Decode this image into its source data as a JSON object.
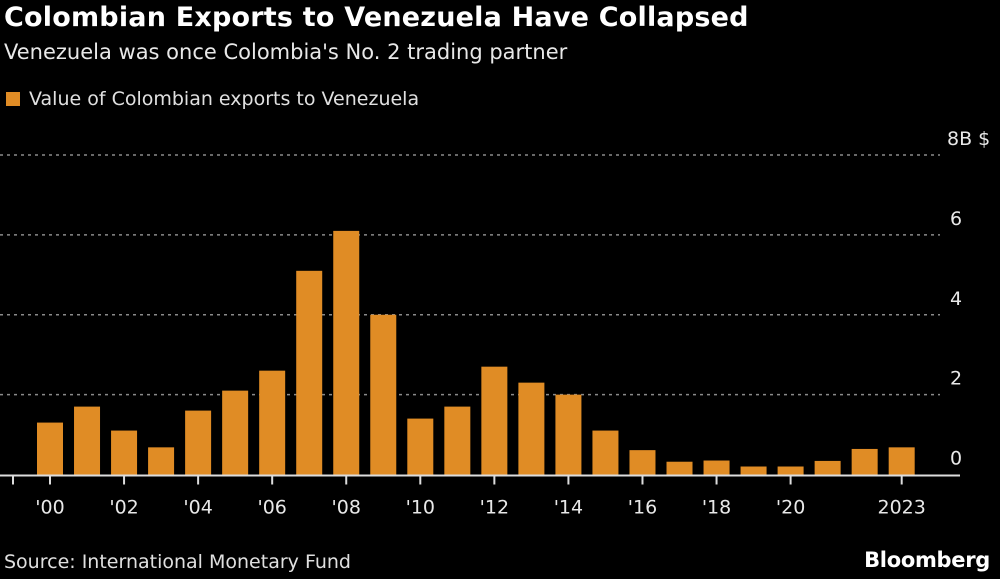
{
  "title": "Colombian Exports to Venezuela Have Collapsed",
  "subtitle": "Venezuela was once Colombia's No. 2 trading partner",
  "source": "Source: International Monetary Fund",
  "brand": "Bloomberg",
  "colors": {
    "bar": "#e08c25",
    "background": "#000000",
    "grid": "#8a8a8a"
  },
  "chart_data": {
    "type": "bar",
    "categories": [
      "2000",
      "2001",
      "2002",
      "2003",
      "2004",
      "2005",
      "2006",
      "2007",
      "2008",
      "2009",
      "2010",
      "2011",
      "2012",
      "2013",
      "2014",
      "2015",
      "2016",
      "2017",
      "2018",
      "2019",
      "2020",
      "2021",
      "2022",
      "2023"
    ],
    "series": [
      {
        "name": "Value of Colombian exports to Venezuela",
        "values": [
          1.3,
          1.7,
          1.1,
          0.68,
          1.6,
          2.1,
          2.6,
          5.1,
          6.1,
          4.0,
          1.4,
          1.7,
          2.7,
          2.3,
          2.0,
          1.1,
          0.61,
          0.32,
          0.35,
          0.2,
          0.2,
          0.34,
          0.64,
          0.68
        ]
      }
    ],
    "x_tick_labels": [
      {
        "category": "2000",
        "label": "'00"
      },
      {
        "category": "2002",
        "label": "'02"
      },
      {
        "category": "2004",
        "label": "'04"
      },
      {
        "category": "2006",
        "label": "'06"
      },
      {
        "category": "2008",
        "label": "'08"
      },
      {
        "category": "2010",
        "label": "'10"
      },
      {
        "category": "2012",
        "label": "'12"
      },
      {
        "category": "2014",
        "label": "'14"
      },
      {
        "category": "2016",
        "label": "'16"
      },
      {
        "category": "2018",
        "label": "'18"
      },
      {
        "category": "2020",
        "label": "'20"
      },
      {
        "category": "2023",
        "label": "2023"
      }
    ],
    "y_ticks": [
      {
        "value": 0,
        "label": "0"
      },
      {
        "value": 2,
        "label": "2"
      },
      {
        "value": 4,
        "label": "4"
      },
      {
        "value": 6,
        "label": "6"
      },
      {
        "value": 8,
        "label": "8B $"
      }
    ],
    "ylim": [
      0,
      8
    ],
    "y_axis_position": "right",
    "grid": true,
    "legend": "top-left"
  }
}
